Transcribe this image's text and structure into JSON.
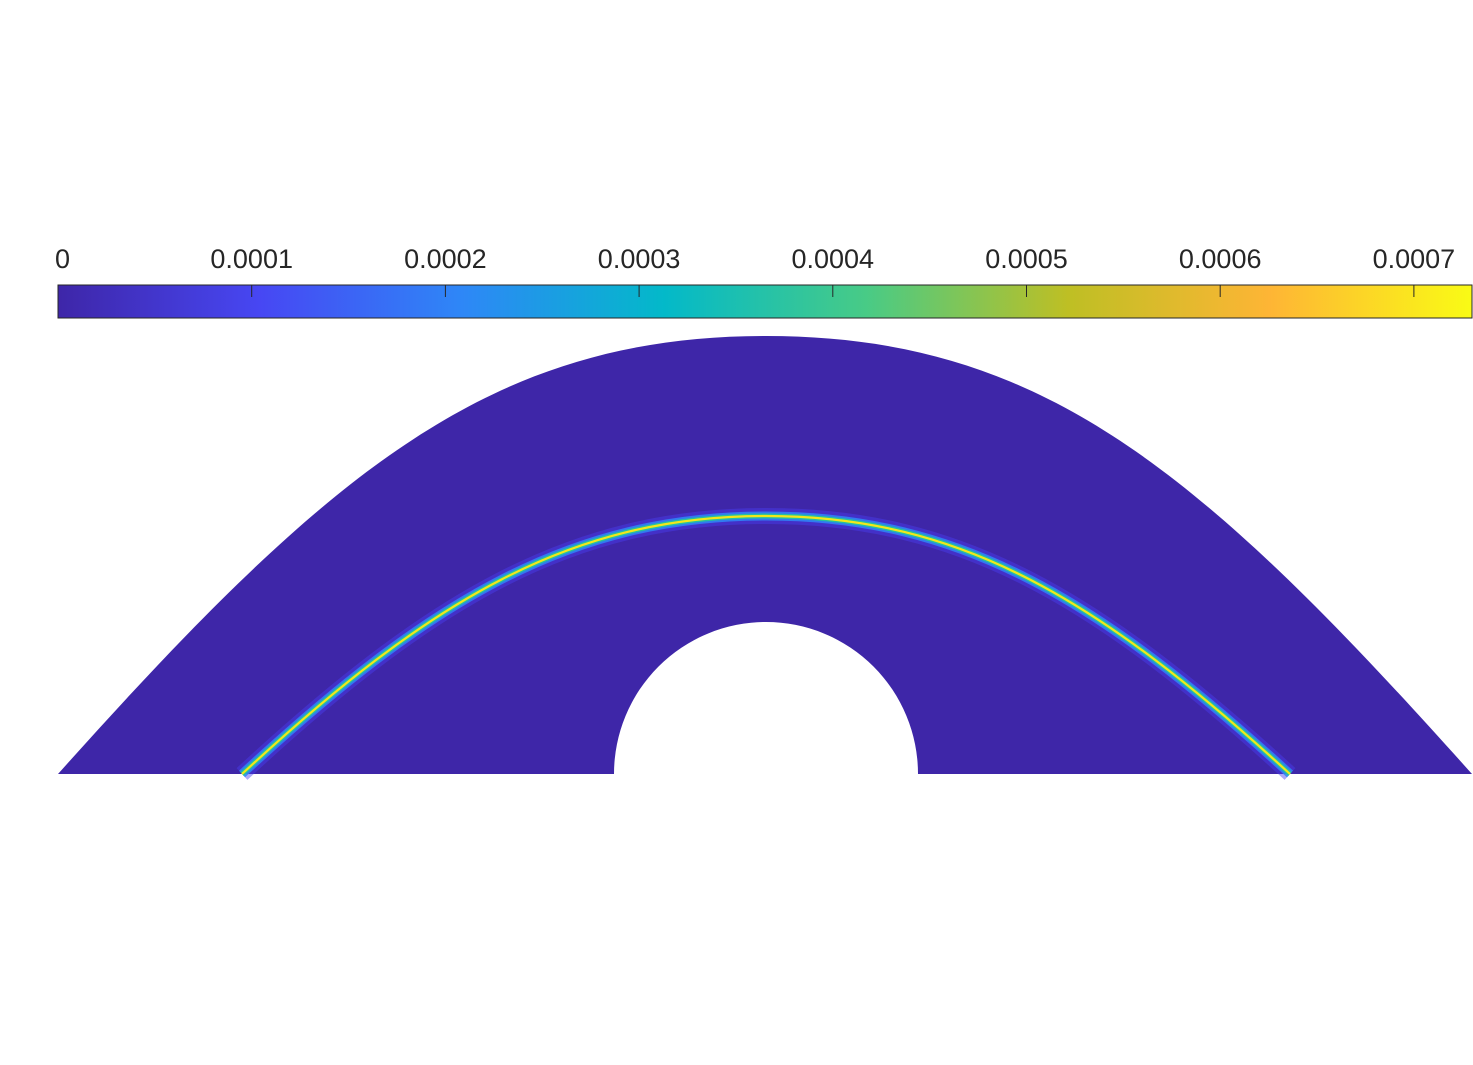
{
  "chart_data": {
    "type": "heatmap",
    "title": "",
    "xlabel": "",
    "ylabel": "",
    "axes_visible": false,
    "colormap": "parula",
    "colormap_stops": [
      "#3e26a8",
      "#4747f3",
      "#2e87f7",
      "#03b9c9",
      "#48cb86",
      "#bebf24",
      "#feb535",
      "#f9fb15"
    ],
    "domain_color": "#3e26a8",
    "colorbar": {
      "location": "top",
      "range": [
        0,
        0.00073
      ],
      "tick_values": [
        0,
        0.0001,
        0.0002,
        0.0003,
        0.0004,
        0.0005,
        0.0006,
        0.0007
      ],
      "tick_labels": [
        "0",
        "0.0001",
        "0.0002",
        "0.0003",
        "0.0004",
        "0.0005",
        "0.0006",
        "0.0007"
      ]
    },
    "field": {
      "shape": "arch with semicircular hole",
      "feature": "thin arc-shaped crack band",
      "background_value": 0,
      "peak_value": 0.00073
    }
  }
}
